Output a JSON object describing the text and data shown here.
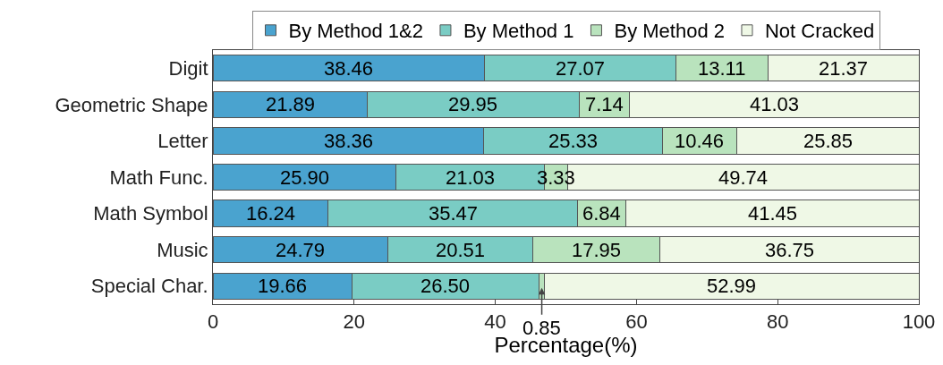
{
  "chart_data": {
    "type": "bar",
    "orientation": "horizontal",
    "stacked": true,
    "xlabel": "Percentage(%)",
    "categories": [
      "Digit",
      "Geometric Shape",
      "Letter",
      "Math Func.",
      "Math Symbol",
      "Music",
      "Special Char."
    ],
    "series": [
      {
        "name": "By Method 1&2",
        "color": "#4aa3cf",
        "values": [
          38.46,
          21.89,
          38.36,
          25.9,
          16.24,
          24.79,
          19.66
        ],
        "value_labels": [
          "38.46",
          "21.89",
          "38.36",
          "25.90",
          "16.24",
          "24.79",
          "19.66"
        ]
      },
      {
        "name": "By Method 1",
        "color": "#7accc4",
        "values": [
          27.07,
          29.95,
          25.33,
          21.03,
          35.47,
          20.51,
          26.5
        ],
        "value_labels": [
          "27.07",
          "29.95",
          "25.33",
          "21.03",
          "35.47",
          "20.51",
          "26.50"
        ]
      },
      {
        "name": "By Method 2",
        "color": "#b9e3bd",
        "values": [
          13.11,
          7.14,
          10.46,
          3.33,
          6.84,
          17.95,
          0.85
        ],
        "value_labels": [
          "13.11",
          "7.14",
          "10.46",
          "3.33",
          "6.84",
          "17.95",
          null
        ]
      },
      {
        "name": "Not Cracked",
        "color": "#eff8e6",
        "values": [
          21.37,
          41.03,
          25.85,
          49.74,
          41.45,
          36.75,
          52.99
        ],
        "value_labels": [
          "21.37",
          "41.03",
          "25.85",
          "49.74",
          "41.45",
          "36.75",
          "52.99"
        ]
      }
    ],
    "annotations": [
      {
        "text": "0.85",
        "x": 46.585,
        "y": "Special Char."
      }
    ],
    "xlim": [
      0,
      100
    ],
    "xticks": [
      0,
      20,
      40,
      60,
      80,
      100
    ],
    "grid": false,
    "legend": "top"
  }
}
